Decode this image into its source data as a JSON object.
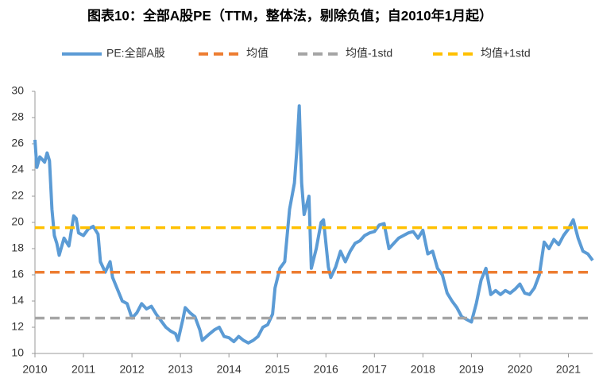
{
  "chart_data": {
    "type": "line",
    "title": "图表10：全部A股PE（TTM，整体法，剔除负值；自2010年1月起）",
    "xlim": [
      2010,
      2021.5
    ],
    "xticks": [
      2010,
      2011,
      2012,
      2013,
      2014,
      2015,
      2016,
      2017,
      2018,
      2019,
      2020,
      2021
    ],
    "ylim": [
      10,
      30
    ],
    "yticks": [
      10,
      12,
      14,
      16,
      18,
      20,
      22,
      24,
      26,
      28,
      30
    ],
    "grid": false,
    "legend": "top",
    "series": [
      {
        "name": "PE:全部A股",
        "color": "#5b9bd5",
        "dash": false,
        "x": [
          2010.0,
          2010.04,
          2010.1,
          2010.2,
          2010.25,
          2010.3,
          2010.35,
          2010.4,
          2010.45,
          2010.5,
          2010.6,
          2010.7,
          2010.8,
          2010.85,
          2010.9,
          2011.0,
          2011.1,
          2011.2,
          2011.3,
          2011.35,
          2011.45,
          2011.55,
          2011.6,
          2011.7,
          2011.8,
          2011.9,
          2012.0,
          2012.1,
          2012.2,
          2012.3,
          2012.4,
          2012.5,
          2012.6,
          2012.7,
          2012.8,
          2012.9,
          2012.95,
          2013.05,
          2013.1,
          2013.2,
          2013.3,
          2013.4,
          2013.45,
          2013.6,
          2013.7,
          2013.8,
          2013.9,
          2014.0,
          2014.1,
          2014.2,
          2014.3,
          2014.4,
          2014.5,
          2014.6,
          2014.7,
          2014.8,
          2014.9,
          2014.95,
          2015.05,
          2015.15,
          2015.25,
          2015.35,
          2015.4,
          2015.45,
          2015.5,
          2015.55,
          2015.65,
          2015.7,
          2015.8,
          2015.9,
          2015.95,
          2016.05,
          2016.1,
          2016.2,
          2016.3,
          2016.4,
          2016.5,
          2016.6,
          2016.7,
          2016.8,
          2016.9,
          2017.0,
          2017.1,
          2017.2,
          2017.3,
          2017.4,
          2017.5,
          2017.6,
          2017.7,
          2017.8,
          2017.9,
          2018.0,
          2018.1,
          2018.2,
          2018.3,
          2018.4,
          2018.5,
          2018.6,
          2018.7,
          2018.8,
          2018.9,
          2019.0,
          2019.1,
          2019.2,
          2019.3,
          2019.4,
          2019.5,
          2019.6,
          2019.7,
          2019.8,
          2019.9,
          2020.0,
          2020.1,
          2020.2,
          2020.3,
          2020.4,
          2020.5,
          2020.6,
          2020.7,
          2020.8,
          2020.9,
          2021.0,
          2021.1,
          2021.2,
          2021.3,
          2021.4,
          2021.5
        ],
        "values": [
          26.3,
          24.2,
          25.0,
          24.6,
          25.3,
          24.7,
          21.0,
          19.0,
          18.4,
          17.5,
          18.8,
          18.2,
          20.5,
          20.3,
          19.2,
          19.0,
          19.5,
          19.7,
          19.1,
          17.0,
          16.2,
          17.0,
          15.8,
          14.9,
          14.0,
          13.8,
          12.7,
          13.1,
          13.8,
          13.4,
          13.6,
          13.0,
          12.5,
          12.0,
          11.7,
          11.5,
          11.0,
          12.6,
          13.5,
          13.1,
          12.8,
          11.8,
          11.0,
          11.5,
          11.8,
          12.0,
          11.3,
          11.2,
          10.9,
          11.3,
          11.0,
          10.8,
          11.0,
          11.3,
          12.0,
          12.2,
          13.0,
          15.0,
          16.5,
          17.0,
          21.0,
          23.0,
          25.5,
          28.9,
          23.0,
          20.6,
          22.0,
          16.5,
          18.0,
          20.0,
          20.2,
          16.6,
          15.8,
          16.6,
          17.8,
          17.0,
          17.8,
          18.4,
          18.6,
          19.0,
          19.2,
          19.3,
          19.8,
          19.9,
          18.0,
          18.4,
          18.8,
          19.0,
          19.2,
          19.3,
          18.8,
          19.4,
          17.6,
          17.8,
          16.5,
          16.0,
          14.6,
          14.0,
          13.5,
          12.8,
          12.6,
          12.4,
          13.8,
          15.6,
          16.5,
          14.5,
          14.8,
          14.5,
          14.8,
          14.6,
          14.9,
          15.3,
          14.6,
          14.5,
          15.0,
          16.0,
          18.5,
          18.0,
          18.7,
          18.3,
          19.0,
          19.5,
          20.2,
          18.8,
          17.8,
          17.6,
          17.1
        ]
      },
      {
        "name": "均值",
        "color": "#ed7d31",
        "dash": true,
        "x": [
          2010,
          2021.5
        ],
        "values": [
          16.2,
          16.2
        ]
      },
      {
        "name": "均值-1std",
        "color": "#a5a5a5",
        "dash": true,
        "x": [
          2010,
          2021.5
        ],
        "values": [
          12.7,
          12.7
        ]
      },
      {
        "name": "均值+1std",
        "color": "#ffc000",
        "dash": true,
        "x": [
          2010,
          2021.5
        ],
        "values": [
          19.6,
          19.6
        ]
      }
    ]
  }
}
